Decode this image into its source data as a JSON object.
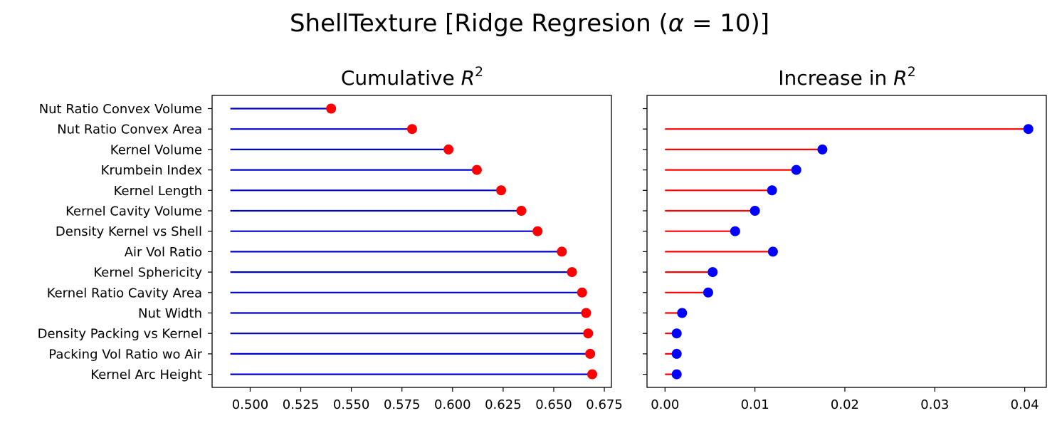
{
  "figure": {
    "suptitle_main": "ShellTexture [Ridge Regresion (",
    "suptitle_alpha": "α",
    "suptitle_eq": " = 10)]",
    "suptitle_close": ""
  },
  "chart_data": [
    {
      "type": "lollipop",
      "title_main": "Cumulative ",
      "title_var": "R",
      "title_exp": "2",
      "categories": [
        "Nut Ratio Convex Volume",
        "Nut Ratio Convex Area",
        "Kernel Volume",
        "Krumbein Index",
        "Kernel Length",
        "Kernel Cavity Volume",
        "Density Kernel vs Shell",
        "Air Vol Ratio",
        "Kernel Sphericity",
        "Kernel Ratio Cavity Area",
        "Nut Width",
        "Density Packing vs Kernel",
        "Packing Vol Ratio wo Air",
        "Kernel Arc Height"
      ],
      "values": [
        0.54,
        0.58,
        0.598,
        0.612,
        0.624,
        0.634,
        0.642,
        0.654,
        0.659,
        0.664,
        0.666,
        0.667,
        0.668,
        0.669
      ],
      "baseline": 0.4902,
      "xlim": [
        0.4812,
        0.6785
      ],
      "xticks": [
        0.5,
        0.525,
        0.55,
        0.575,
        0.6,
        0.625,
        0.65,
        0.675
      ],
      "xtick_labels": [
        "0.500",
        "0.525",
        "0.550",
        "0.575",
        "0.600",
        "0.625",
        "0.650",
        "0.675"
      ],
      "line_color": "#0000cc",
      "marker_color": "#ff0000"
    },
    {
      "type": "lollipop",
      "title_main": "Increase in ",
      "title_var": "R",
      "title_exp": "2",
      "categories": [
        "Nut Ratio Convex Volume",
        "Nut Ratio Convex Area",
        "Kernel Volume",
        "Krumbein Index",
        "Kernel Length",
        "Kernel Cavity Volume",
        "Density Kernel vs Shell",
        "Air Vol Ratio",
        "Kernel Sphericity",
        "Kernel Ratio Cavity Area",
        "Nut Width",
        "Density Packing vs Kernel",
        "Packing Vol Ratio wo Air",
        "Kernel Arc Height"
      ],
      "values": [
        null,
        0.0404,
        0.0175,
        0.0146,
        0.0119,
        0.01,
        0.0078,
        0.012,
        0.0053,
        0.0048,
        0.0019,
        0.0013,
        0.0013,
        0.0013
      ],
      "baseline": 0,
      "xlim": [
        -0.002,
        0.0424
      ],
      "xticks": [
        0.0,
        0.01,
        0.02,
        0.03,
        0.04
      ],
      "xtick_labels": [
        "0.00",
        "0.01",
        "0.02",
        "0.03",
        "0.04"
      ],
      "line_color": "#ff0000",
      "marker_color": "#0000ff"
    }
  ]
}
